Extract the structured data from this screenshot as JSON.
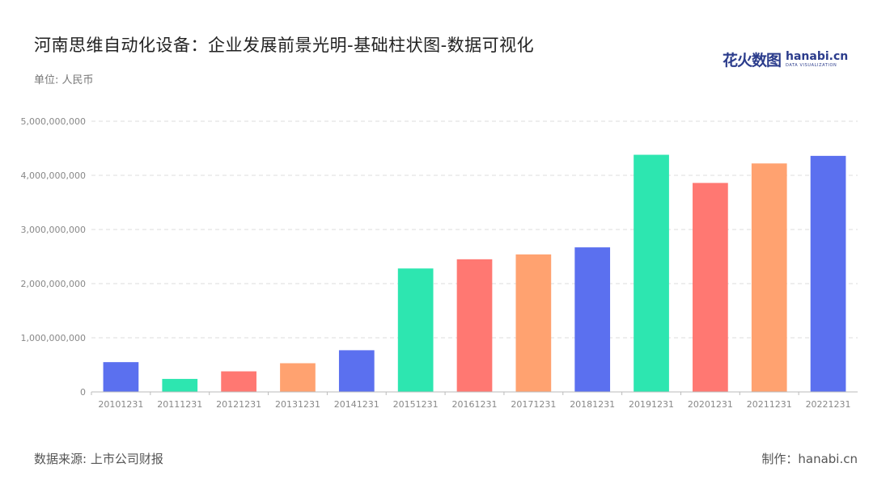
{
  "header": {
    "title": "河南思维自动化设备：企业发展前景光明-基础柱状图-数据可视化",
    "unit": "单位: 人民币"
  },
  "logo": {
    "cn": "花火数图",
    "en": "hanabi.cn",
    "tagline": "DATA VISUALIZATION"
  },
  "footer": {
    "source": "数据来源: 上市公司财报",
    "credit": "制作：hanabi.cn"
  },
  "colors": {
    "blue": "#5b70ef",
    "green": "#2de6b0",
    "red": "#ff7872",
    "orange": "#ffa270"
  },
  "chart_data": {
    "type": "bar",
    "title": "",
    "xlabel": "",
    "ylabel": "",
    "ylim": [
      0,
      5000000000
    ],
    "yticks": [
      0,
      1000000000,
      2000000000,
      3000000000,
      4000000000,
      5000000000
    ],
    "ytick_labels": [
      "0",
      "1,000,000,000",
      "2,000,000,000",
      "3,000,000,000",
      "4,000,000,000",
      "5,000,000,000"
    ],
    "grid": true,
    "categories": [
      "20101231",
      "20111231",
      "20121231",
      "20131231",
      "20141231",
      "20151231",
      "20161231",
      "20171231",
      "20181231",
      "20191231",
      "20201231",
      "20211231",
      "20221231"
    ],
    "values": [
      550000000,
      240000000,
      380000000,
      530000000,
      770000000,
      2280000000,
      2450000000,
      2540000000,
      2670000000,
      4380000000,
      3860000000,
      4220000000,
      4360000000
    ],
    "bar_colors": [
      "#5b70ef",
      "#2de6b0",
      "#ff7872",
      "#ffa270",
      "#5b70ef",
      "#2de6b0",
      "#ff7872",
      "#ffa270",
      "#5b70ef",
      "#2de6b0",
      "#ff7872",
      "#ffa270",
      "#5b70ef"
    ]
  }
}
